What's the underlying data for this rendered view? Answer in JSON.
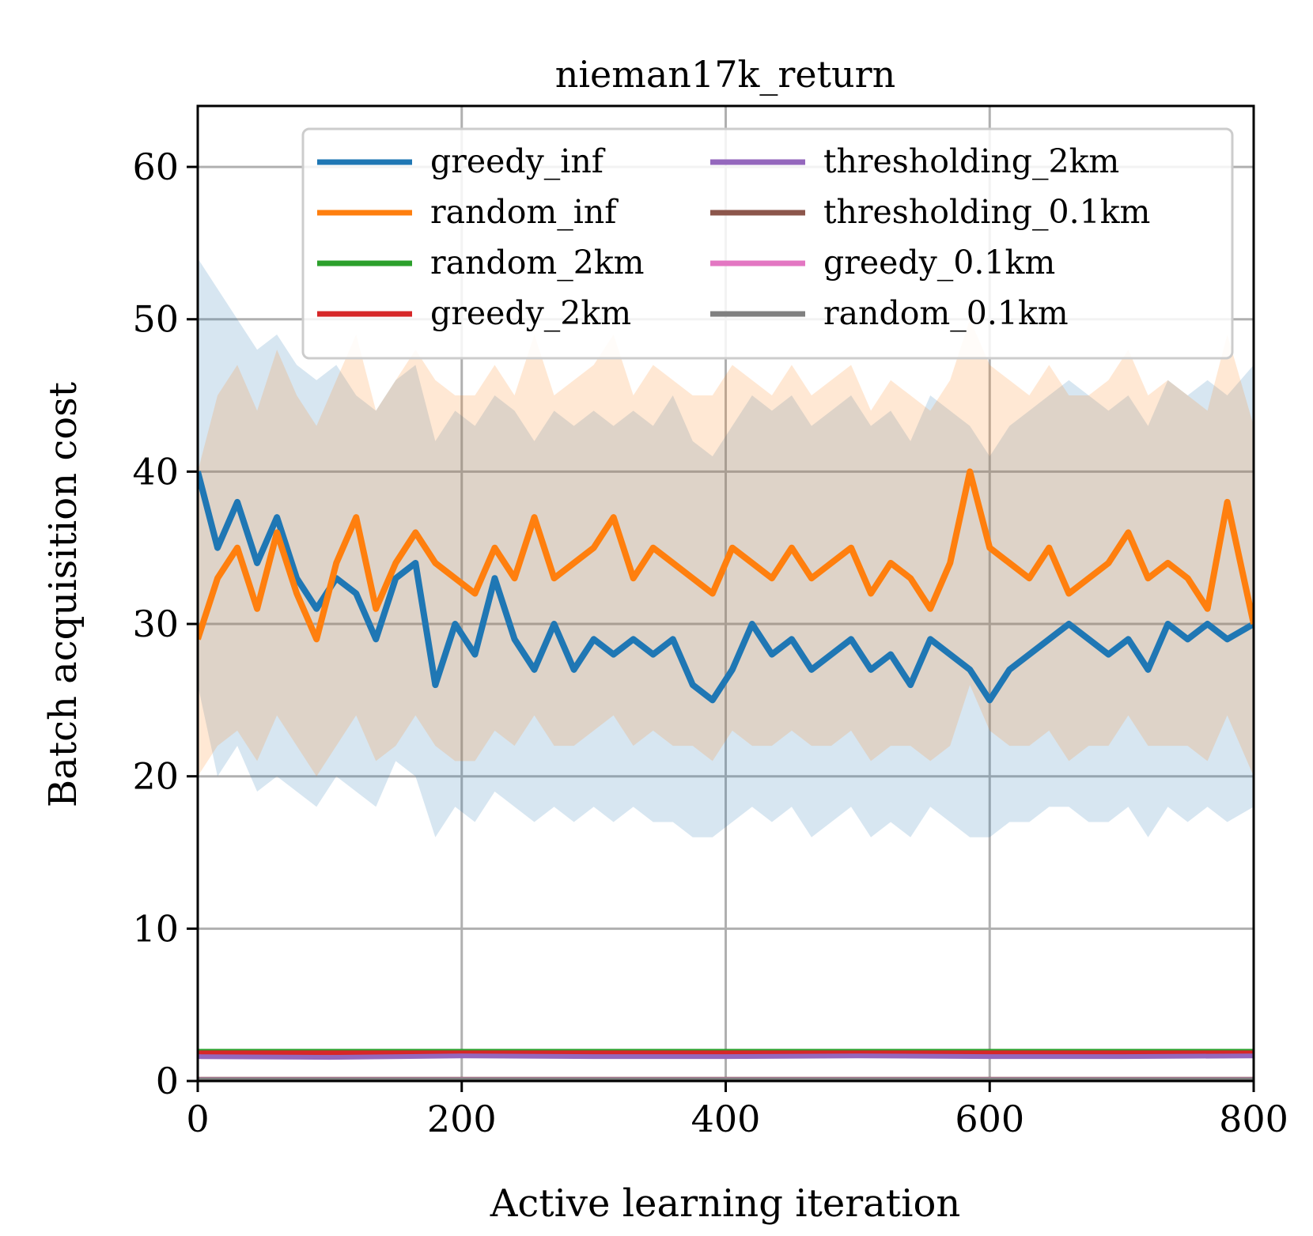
{
  "chart_data": {
    "type": "line",
    "title": "nieman17k_return",
    "xlabel": "Active learning iteration",
    "ylabel": "Batch acquisition cost",
    "xlim": [
      0,
      800
    ],
    "ylim": [
      0,
      64
    ],
    "xticks": [
      0,
      200,
      400,
      600,
      800
    ],
    "xtick_labels": [
      "0",
      "200",
      "400",
      "600",
      "800"
    ],
    "yticks": [
      0,
      10,
      20,
      30,
      40,
      50,
      60
    ],
    "ytick_labels": [
      "0",
      "10",
      "20",
      "30",
      "40",
      "50",
      "60"
    ],
    "grid": true,
    "legend_position": "top-right",
    "legend_columns": 2,
    "series": [
      {
        "name": "greedy_inf",
        "color": "#1f77b4",
        "x": [
          0,
          15,
          30,
          45,
          60,
          75,
          90,
          105,
          120,
          135,
          150,
          165,
          180,
          195,
          210,
          225,
          240,
          255,
          270,
          285,
          300,
          315,
          330,
          345,
          360,
          375,
          390,
          405,
          420,
          435,
          450,
          465,
          480,
          495,
          510,
          525,
          540,
          555,
          570,
          585,
          600,
          615,
          630,
          645,
          660,
          675,
          690,
          705,
          720,
          735,
          750,
          765,
          780,
          800
        ],
        "values": [
          40,
          35,
          38,
          34,
          37,
          33,
          31,
          33,
          32,
          29,
          33,
          34,
          26,
          30,
          28,
          33,
          29,
          27,
          30,
          27,
          29,
          28,
          29,
          28,
          29,
          26,
          25,
          27,
          30,
          28,
          29,
          27,
          28,
          29,
          27,
          28,
          26,
          29,
          28,
          27,
          25,
          27,
          28,
          29,
          30,
          29,
          28,
          29,
          27,
          30,
          29,
          30,
          29,
          30
        ],
        "band": {
          "lower": [
            26,
            20,
            22,
            19,
            20,
            19,
            18,
            20,
            19,
            18,
            21,
            20,
            16,
            18,
            17,
            19,
            18,
            17,
            18,
            17,
            18,
            17,
            18,
            17,
            17,
            16,
            16,
            17,
            18,
            17,
            18,
            16,
            17,
            18,
            16,
            17,
            16,
            18,
            17,
            16,
            16,
            17,
            17,
            18,
            18,
            17,
            17,
            18,
            16,
            18,
            17,
            18,
            17,
            18
          ],
          "upper": [
            54,
            52,
            50,
            48,
            49,
            47,
            46,
            47,
            45,
            44,
            46,
            47,
            42,
            44,
            43,
            45,
            44,
            42,
            44,
            43,
            44,
            43,
            44,
            43,
            45,
            42,
            41,
            43,
            45,
            44,
            45,
            43,
            44,
            45,
            43,
            44,
            42,
            45,
            44,
            43,
            41,
            43,
            44,
            45,
            46,
            45,
            44,
            45,
            43,
            46,
            45,
            46,
            45,
            47
          ]
        }
      },
      {
        "name": "random_inf",
        "color": "#ff7f0e",
        "x": [
          0,
          15,
          30,
          45,
          60,
          75,
          90,
          105,
          120,
          135,
          150,
          165,
          180,
          195,
          210,
          225,
          240,
          255,
          270,
          285,
          300,
          315,
          330,
          345,
          360,
          375,
          390,
          405,
          420,
          435,
          450,
          465,
          480,
          495,
          510,
          525,
          540,
          555,
          570,
          585,
          600,
          615,
          630,
          645,
          660,
          675,
          690,
          705,
          720,
          735,
          750,
          765,
          780,
          800
        ],
        "values": [
          29,
          33,
          35,
          31,
          36,
          32,
          29,
          34,
          37,
          31,
          34,
          36,
          34,
          33,
          32,
          35,
          33,
          37,
          33,
          34,
          35,
          37,
          33,
          35,
          34,
          33,
          32,
          35,
          34,
          33,
          35,
          33,
          34,
          35,
          32,
          34,
          33,
          31,
          34,
          40,
          35,
          34,
          33,
          35,
          32,
          33,
          34,
          36,
          33,
          34,
          33,
          31,
          38,
          30
        ],
        "band": {
          "lower": [
            20,
            22,
            23,
            21,
            24,
            22,
            20,
            22,
            24,
            21,
            22,
            24,
            22,
            21,
            21,
            23,
            22,
            24,
            22,
            22,
            23,
            24,
            22,
            23,
            22,
            22,
            21,
            23,
            22,
            22,
            23,
            22,
            22,
            23,
            21,
            22,
            22,
            21,
            22,
            26,
            23,
            22,
            22,
            23,
            21,
            22,
            22,
            24,
            22,
            22,
            22,
            21,
            24,
            20
          ],
          "upper": [
            40,
            45,
            47,
            44,
            48,
            45,
            43,
            46,
            49,
            44,
            46,
            48,
            46,
            45,
            45,
            47,
            45,
            49,
            45,
            46,
            47,
            49,
            45,
            47,
            46,
            45,
            45,
            47,
            46,
            45,
            47,
            45,
            46,
            47,
            44,
            46,
            45,
            44,
            46,
            50,
            47,
            46,
            45,
            47,
            45,
            45,
            46,
            48,
            45,
            46,
            45,
            44,
            49,
            43
          ]
        }
      },
      {
        "name": "random_2km",
        "color": "#2ca02c",
        "x": [
          0,
          800
        ],
        "values": [
          1.95,
          1.95
        ]
      },
      {
        "name": "greedy_2km",
        "color": "#d62728",
        "x": [
          0,
          800
        ],
        "values": [
          1.85,
          1.85
        ]
      },
      {
        "name": "thresholding_2km",
        "color": "#9467bd",
        "x": [
          0,
          100,
          200,
          300,
          400,
          500,
          600,
          700,
          800
        ],
        "values": [
          1.6,
          1.55,
          1.65,
          1.6,
          1.6,
          1.65,
          1.6,
          1.6,
          1.65
        ]
      },
      {
        "name": "thresholding_0.1km",
        "color": "#8c564b",
        "x": [
          0,
          800
        ],
        "values": [
          0.12,
          0.12
        ]
      },
      {
        "name": "greedy_0.1km",
        "color": "#e377c2",
        "x": [
          0,
          800
        ],
        "values": [
          0.1,
          0.1
        ]
      },
      {
        "name": "random_0.1km",
        "color": "#7f7f7f",
        "x": [
          0,
          800
        ],
        "values": [
          0.08,
          0.08
        ]
      }
    ]
  }
}
